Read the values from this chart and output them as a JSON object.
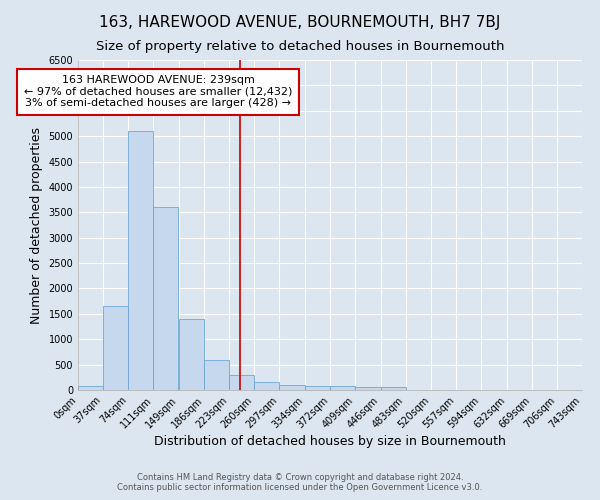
{
  "title": "163, HAREWOOD AVENUE, BOURNEMOUTH, BH7 7BJ",
  "subtitle": "Size of property relative to detached houses in Bournemouth",
  "xlabel": "Distribution of detached houses by size in Bournemouth",
  "ylabel": "Number of detached properties",
  "bin_labels": [
    "0sqm",
    "37sqm",
    "74sqm",
    "111sqm",
    "149sqm",
    "186sqm",
    "223sqm",
    "260sqm",
    "297sqm",
    "334sqm",
    "372sqm",
    "409sqm",
    "446sqm",
    "483sqm",
    "520sqm",
    "557sqm",
    "594sqm",
    "632sqm",
    "669sqm",
    "706sqm",
    "743sqm"
  ],
  "bin_edges": [
    0,
    37,
    74,
    111,
    149,
    186,
    223,
    260,
    297,
    334,
    372,
    409,
    446,
    483,
    520,
    557,
    594,
    632,
    669,
    706,
    743
  ],
  "bar_heights": [
    75,
    1650,
    5100,
    3600,
    1400,
    600,
    300,
    150,
    100,
    75,
    75,
    50,
    50,
    0,
    0,
    0,
    0,
    0,
    0,
    0,
    0
  ],
  "bar_color": "#c5d8ee",
  "bar_edge_color": "#6ea6d0",
  "property_size": 239,
  "vline_color": "#cc0000",
  "ylim": [
    0,
    6500
  ],
  "yticks": [
    0,
    500,
    1000,
    1500,
    2000,
    2500,
    3000,
    3500,
    4000,
    4500,
    5000,
    5500,
    6000,
    6500
  ],
  "annotation_text": "163 HAREWOOD AVENUE: 239sqm\n← 97% of detached houses are smaller (12,432)\n3% of semi-detached houses are larger (428) →",
  "annotation_box_color": "#ffffff",
  "annotation_box_edge": "#cc0000",
  "background_color": "#dce6f0",
  "plot_bg_color": "#dce6f0",
  "grid_color": "#ffffff",
  "title_fontsize": 11,
  "subtitle_fontsize": 9.5,
  "axis_label_fontsize": 9,
  "tick_fontsize": 7,
  "annotation_fontsize": 8,
  "footer_line1": "Contains HM Land Registry data © Crown copyright and database right 2024.",
  "footer_line2": "Contains public sector information licensed under the Open Government Licence v3.0."
}
